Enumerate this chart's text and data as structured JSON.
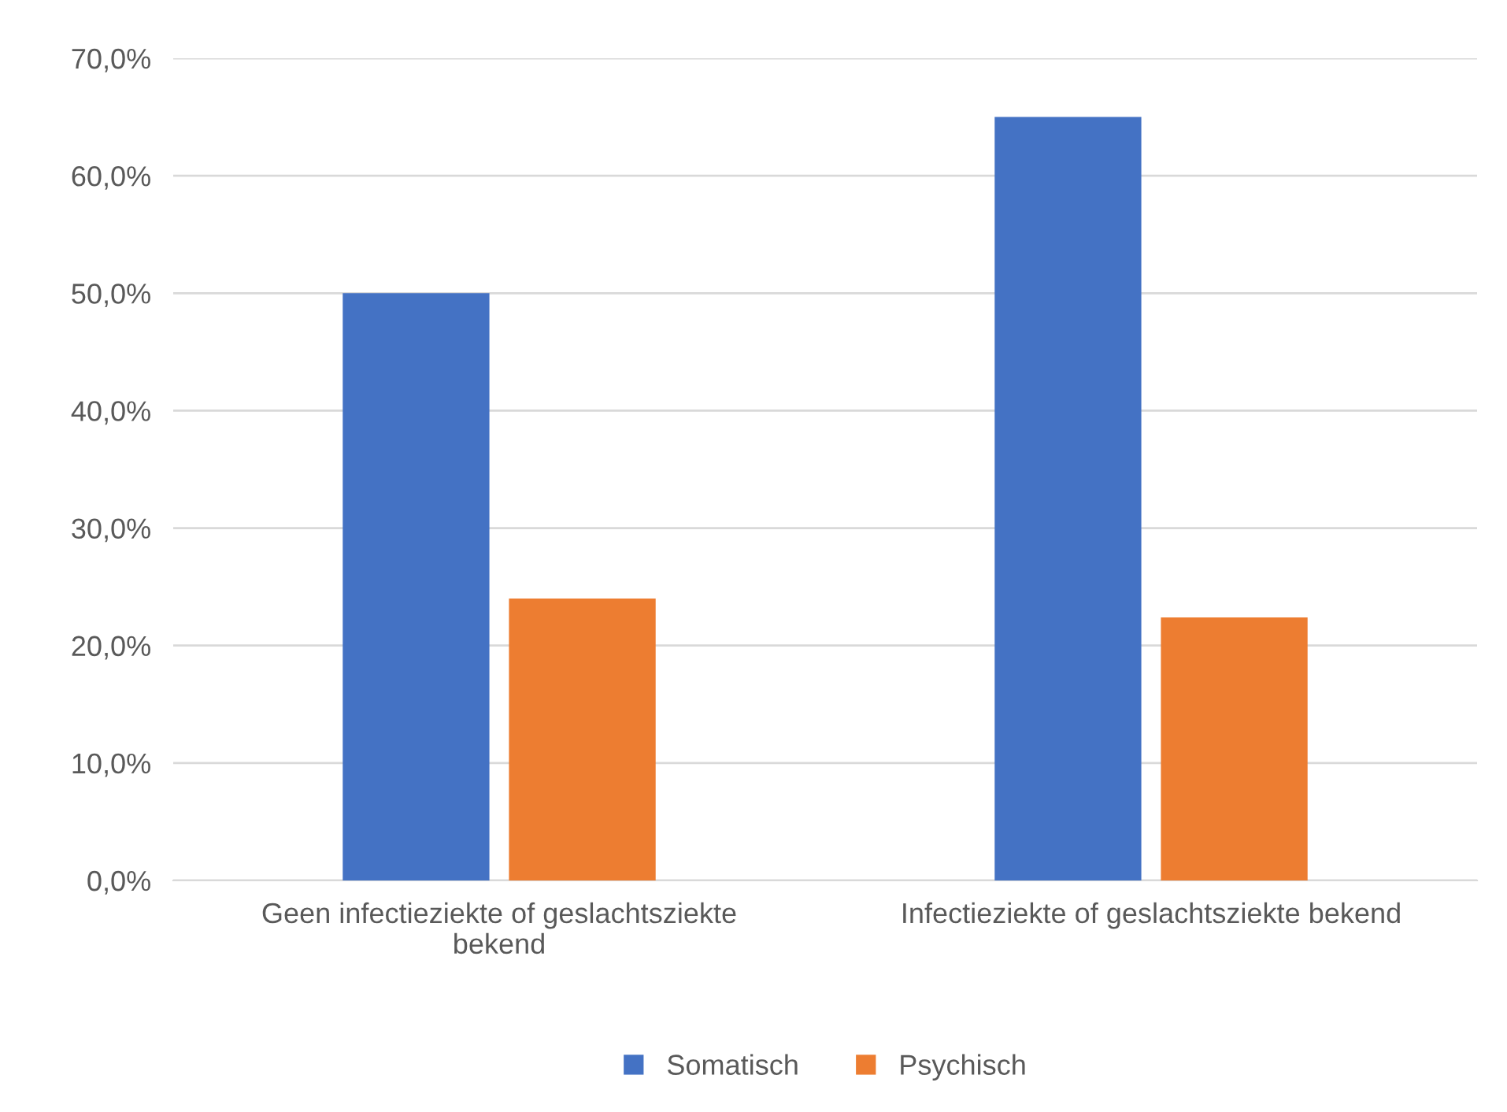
{
  "chart_data": {
    "type": "bar",
    "categories": [
      "Geen infectieziekte of geslachtsziekte\nbekend",
      "Infectieziekte of geslachtsziekte bekend"
    ],
    "series": [
      {
        "name": "Somatisch",
        "color": "#4472c4",
        "values": [
          50.0,
          65.0
        ]
      },
      {
        "name": "Psychisch",
        "color": "#ed7d31",
        "values": [
          24.0,
          22.4
        ]
      }
    ],
    "ylim": [
      0,
      70
    ],
    "yticks": [
      {
        "value": 0,
        "label": "0,0%"
      },
      {
        "value": 10,
        "label": "10,0%"
      },
      {
        "value": 20,
        "label": "20,0%"
      },
      {
        "value": 30,
        "label": "30,0%"
      },
      {
        "value": 40,
        "label": "40,0%"
      },
      {
        "value": 50,
        "label": "50,0%"
      },
      {
        "value": 60,
        "label": "60,0%"
      },
      {
        "value": 70,
        "label": "70,0%"
      }
    ],
    "grid": "y",
    "legend": "bottom"
  }
}
